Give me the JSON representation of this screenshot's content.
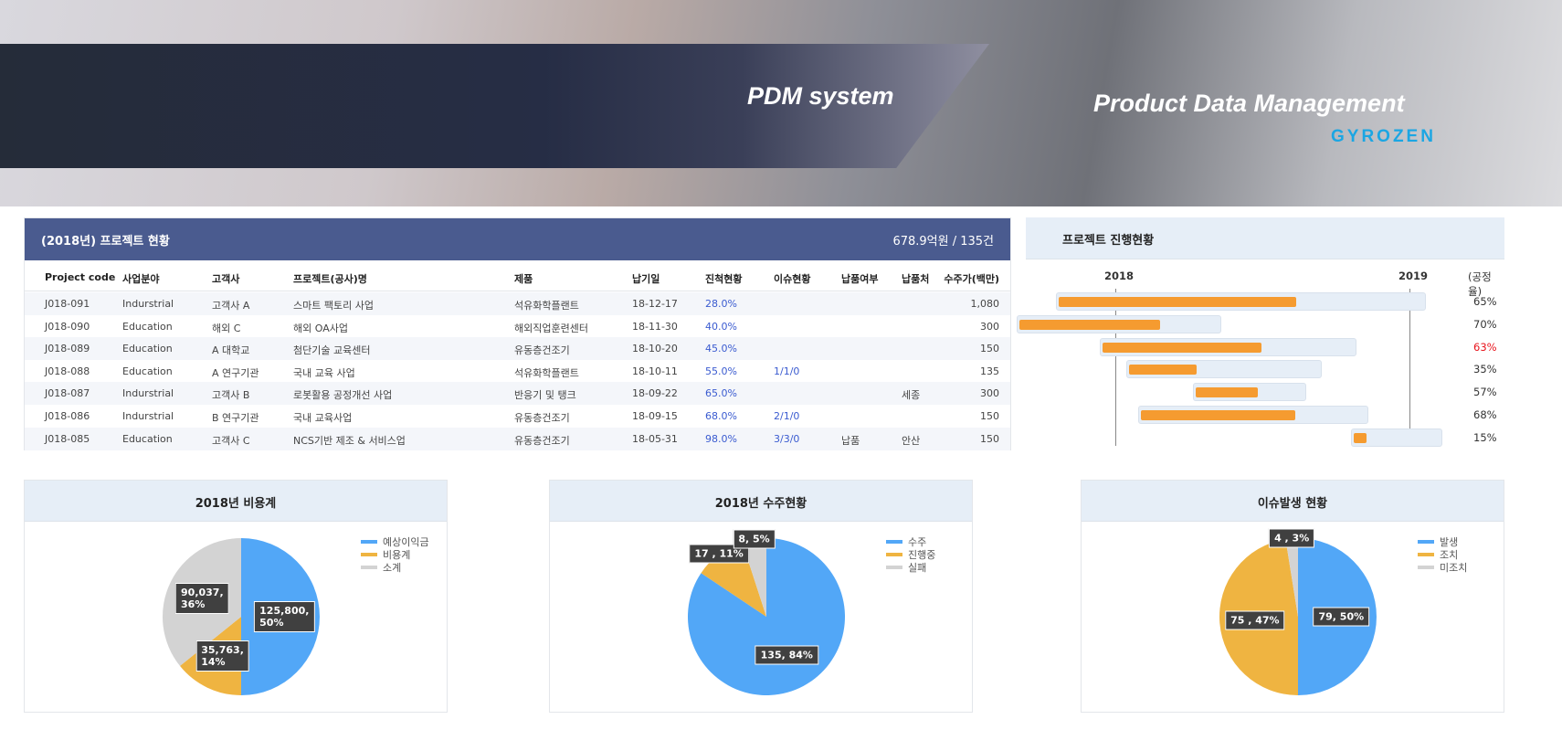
{
  "banner": {
    "title": "PDM system",
    "subtitle": "Product Data Management",
    "logo": "GYROZEN"
  },
  "table": {
    "title": "(2018년) 프로젝트 현황",
    "summary": "678.9억원 / 135건",
    "columns": [
      "Project code",
      "사업분야",
      "고객사",
      "프로젝트(공사)명",
      "제품",
      "납기일",
      "진척현황",
      "이슈현황",
      "납품여부",
      "납품처",
      "수주가(백만)"
    ],
    "rows": [
      [
        "J018-091",
        "Indurstrial",
        "고객사 A",
        "스마트 팩토리 사업",
        "석유화학플랜트",
        "18-12-17",
        "28.0%",
        "",
        "",
        "",
        "1,080"
      ],
      [
        "J018-090",
        "Education",
        "해외 C",
        "해외 OA사업",
        "해외직업훈련센터",
        "18-11-30",
        "40.0%",
        "",
        "",
        "",
        "300"
      ],
      [
        "J018-089",
        "Education",
        "A 대학교",
        "첨단기술 교육센터",
        "유동층건조기",
        "18-10-20",
        "45.0%",
        "",
        "",
        "",
        "150"
      ],
      [
        "J018-088",
        "Education",
        "A 연구기관",
        "국내 교육 사업",
        "석유화학플랜트",
        "18-10-11",
        "55.0%",
        "1/1/0",
        "",
        "",
        "135"
      ],
      [
        "J018-087",
        "Indurstrial",
        "고객사 B",
        "로봇활용 공정개선 사업",
        "반응기 및 탱크",
        "18-09-22",
        "65.0%",
        "",
        "",
        "세종",
        "300"
      ],
      [
        "J018-086",
        "Indurstrial",
        "B 연구기관",
        "국내 교육사업",
        "유동층건조기",
        "18-09-15",
        "68.0%",
        "2/1/0",
        "",
        "",
        "150"
      ],
      [
        "J018-085",
        "Education",
        "고객사 C",
        "NCS기반 제조 & 서비스업",
        "유동층건조기",
        "18-05-31",
        "98.0%",
        "3/3/0",
        "납품",
        "안산",
        "150"
      ]
    ]
  },
  "gantt": {
    "title": "프로젝트 진행현황",
    "years": [
      "2018",
      "2019"
    ],
    "rate_label": "(공정율)",
    "fill_color": "#f59b30",
    "track_color": "#e6eef7",
    "rows": [
      {
        "start": "2017-10-19",
        "end": "2019-01-21",
        "progress": 65,
        "label": "65%"
      },
      {
        "start": "2017-09-01",
        "end": "2018-05-12",
        "progress": 70,
        "label": "70%"
      },
      {
        "start": "2017-12-13",
        "end": "2018-10-27",
        "progress": 63,
        "label": "63%",
        "highlight": "#e8141c"
      },
      {
        "start": "2018-01-15",
        "end": "2018-09-14",
        "progress": 35,
        "label": "35%"
      },
      {
        "start": "2018-04-07",
        "end": "2018-08-26",
        "progress": 57,
        "label": "57%"
      },
      {
        "start": "2018-01-29",
        "end": "2018-11-11",
        "progress": 68,
        "label": "68%"
      },
      {
        "start": "2018-10-20",
        "end": "2019-02-11",
        "progress": 15,
        "label": "15%"
      }
    ]
  },
  "chart_data": [
    {
      "type": "pie",
      "title": "2018년 비용계",
      "categories": [
        "예상이익금",
        "비용계",
        "소계"
      ],
      "values": [
        125800,
        35763,
        90037
      ],
      "labels": [
        "125,800,\n50%",
        "35,763,\n14%",
        "90,037,\n36%"
      ],
      "colors": [
        "#52a7f7",
        "#efb441",
        "#d3d3d3"
      ],
      "legend": "top-right"
    },
    {
      "type": "pie",
      "title": "2018년 수주현황",
      "categories": [
        "수주",
        "진행중",
        "실패"
      ],
      "values": [
        135,
        17,
        8
      ],
      "labels": [
        "135, 84%",
        "17 , 11%",
        "8, 5%"
      ],
      "colors": [
        "#52a7f7",
        "#efb441",
        "#d3d3d3"
      ],
      "legend": "top-right"
    },
    {
      "type": "pie",
      "title": "이슈발생 현황",
      "categories": [
        "발생",
        "조치",
        "미조치"
      ],
      "values": [
        79,
        75,
        4
      ],
      "labels": [
        "79, 50%",
        "75 , 47%",
        "4 , 3%"
      ],
      "colors": [
        "#52a7f7",
        "#efb441",
        "#d3d3d3"
      ],
      "legend": "top-right"
    }
  ]
}
